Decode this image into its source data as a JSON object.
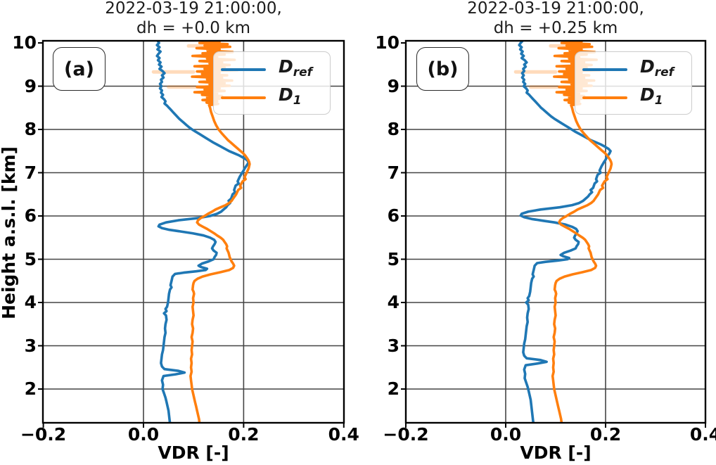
{
  "chart_data": [
    {
      "type": "line",
      "panel_label": "(a)",
      "title": "2022-03-19 21:00:00, dh = +0.0 km",
      "title_line1": "2022-03-19 21:00:00,",
      "title_line2": "dh = +0.0 km",
      "xlabel": "VDR [-]",
      "ylabel": "Height a.s.l. [km]",
      "xlim": [
        -0.2,
        0.4
      ],
      "ylim": [
        1.22,
        10.05
      ],
      "xtick_labels": [
        "−0.2",
        "0.0",
        "0.2",
        "0.4"
      ],
      "xtick_values": [
        -0.2,
        0.0,
        0.2,
        0.4
      ],
      "ytick_values": [
        2,
        3,
        4,
        5,
        6,
        7,
        8,
        9,
        10
      ],
      "grid": true,
      "legend_position": "upper right",
      "series": [
        {
          "name": "D_ref",
          "color": "#1f77b4",
          "profile": "D_ref",
          "dh_km": 0.0
        },
        {
          "name": "D_1",
          "color": "#ff7f0e",
          "profile": "D_1",
          "dh_km": 0.0
        }
      ]
    },
    {
      "type": "line",
      "panel_label": "(b)",
      "title": "2022-03-19 21:00:00, dh = +0.25 km",
      "title_line1": "2022-03-19 21:00:00,",
      "title_line2": "dh = +0.25 km",
      "xlabel": "VDR [-]",
      "ylabel": "Height a.s.l. [km]",
      "xlim": [
        -0.2,
        0.4
      ],
      "ylim": [
        1.22,
        10.05
      ],
      "xtick_labels": [
        "−0.2",
        "0.0",
        "0.2",
        "0.4"
      ],
      "xtick_values": [
        -0.2,
        0.0,
        0.2,
        0.4
      ],
      "ytick_values": [
        2,
        3,
        4,
        5,
        6,
        7,
        8,
        9,
        10
      ],
      "grid": true,
      "legend_position": "upper right",
      "series": [
        {
          "name": "D_ref",
          "color": "#1f77b4",
          "profile": "D_ref",
          "dh_km": 0.25
        },
        {
          "name": "D_1",
          "color": "#ff7f0e",
          "profile": "D_1",
          "dh_km": 0.0
        }
      ]
    }
  ],
  "legend": {
    "items": [
      {
        "label_main": "D",
        "label_sub": "ref",
        "color": "#1f77b4"
      },
      {
        "label_main": "D",
        "label_sub": "1",
        "color": "#ff7f0e"
      }
    ]
  },
  "colors": {
    "blue": "#1f77b4",
    "orange": "#ff7f0e",
    "grid": "#444444",
    "frame": "#000000"
  },
  "profiles": {
    "D_ref": [
      [
        10.06,
        0.028
      ],
      [
        10.0,
        0.031
      ],
      [
        9.95,
        0.027
      ],
      [
        9.9,
        0.032
      ],
      [
        9.85,
        0.028
      ],
      [
        9.8,
        0.034
      ],
      [
        9.75,
        0.03
      ],
      [
        9.7,
        0.027
      ],
      [
        9.65,
        0.032
      ],
      [
        9.6,
        0.029
      ],
      [
        9.55,
        0.034
      ],
      [
        9.5,
        0.031
      ],
      [
        9.45,
        0.036
      ],
      [
        9.4,
        0.032
      ],
      [
        9.35,
        0.038
      ],
      [
        9.3,
        0.042
      ],
      [
        9.25,
        0.037
      ],
      [
        9.2,
        0.04
      ],
      [
        9.15,
        0.035
      ],
      [
        9.1,
        0.037
      ],
      [
        9.05,
        0.033
      ],
      [
        9.0,
        0.036
      ],
      [
        8.95,
        0.033
      ],
      [
        8.9,
        0.037
      ],
      [
        8.85,
        0.035
      ],
      [
        8.8,
        0.039
      ],
      [
        8.75,
        0.036
      ],
      [
        8.7,
        0.041
      ],
      [
        8.65,
        0.044
      ],
      [
        8.6,
        0.042
      ],
      [
        8.55,
        0.047
      ],
      [
        8.5,
        0.051
      ],
      [
        8.45,
        0.055
      ],
      [
        8.4,
        0.059
      ],
      [
        8.35,
        0.063
      ],
      [
        8.3,
        0.067
      ],
      [
        8.25,
        0.071
      ],
      [
        8.2,
        0.076
      ],
      [
        8.15,
        0.081
      ],
      [
        8.1,
        0.086
      ],
      [
        8.05,
        0.091
      ],
      [
        8.0,
        0.097
      ],
      [
        7.95,
        0.104
      ],
      [
        7.9,
        0.111
      ],
      [
        7.85,
        0.118
      ],
      [
        7.8,
        0.125
      ],
      [
        7.75,
        0.132
      ],
      [
        7.7,
        0.139
      ],
      [
        7.65,
        0.147
      ],
      [
        7.6,
        0.155
      ],
      [
        7.55,
        0.163
      ],
      [
        7.5,
        0.171
      ],
      [
        7.45,
        0.181
      ],
      [
        7.4,
        0.191
      ],
      [
        7.35,
        0.199
      ],
      [
        7.3,
        0.206
      ],
      [
        7.25,
        0.21
      ],
      [
        7.2,
        0.208
      ],
      [
        7.15,
        0.205
      ],
      [
        7.1,
        0.202
      ],
      [
        7.05,
        0.2
      ],
      [
        7.0,
        0.197
      ],
      [
        6.9,
        0.192
      ],
      [
        6.8,
        0.188
      ],
      [
        6.75,
        0.19
      ],
      [
        6.7,
        0.184
      ],
      [
        6.6,
        0.181
      ],
      [
        6.55,
        0.183
      ],
      [
        6.5,
        0.178
      ],
      [
        6.4,
        0.175
      ],
      [
        6.35,
        0.17
      ],
      [
        6.3,
        0.173
      ],
      [
        6.25,
        0.168
      ],
      [
        6.2,
        0.165
      ],
      [
        6.15,
        0.16
      ],
      [
        6.1,
        0.155
      ],
      [
        6.05,
        0.147
      ],
      [
        6.0,
        0.133
      ],
      [
        5.95,
        0.108
      ],
      [
        5.9,
        0.07
      ],
      [
        5.85,
        0.045
      ],
      [
        5.8,
        0.032
      ],
      [
        5.76,
        0.03
      ],
      [
        5.72,
        0.037
      ],
      [
        5.68,
        0.052
      ],
      [
        5.64,
        0.075
      ],
      [
        5.6,
        0.098
      ],
      [
        5.55,
        0.12
      ],
      [
        5.5,
        0.133
      ],
      [
        5.45,
        0.141
      ],
      [
        5.4,
        0.144
      ],
      [
        5.35,
        0.142
      ],
      [
        5.3,
        0.139
      ],
      [
        5.25,
        0.137
      ],
      [
        5.2,
        0.14
      ],
      [
        5.15,
        0.146
      ],
      [
        5.1,
        0.145
      ],
      [
        5.05,
        0.142
      ],
      [
        5.0,
        0.14
      ],
      [
        4.95,
        0.13
      ],
      [
        4.9,
        0.117
      ],
      [
        4.85,
        0.11
      ],
      [
        4.82,
        0.115
      ],
      [
        4.78,
        0.127
      ],
      [
        4.75,
        0.124
      ],
      [
        4.72,
        0.105
      ],
      [
        4.69,
        0.08
      ],
      [
        4.66,
        0.063
      ],
      [
        4.6,
        0.058
      ],
      [
        4.5,
        0.056
      ],
      [
        4.4,
        0.054
      ],
      [
        4.35,
        0.056
      ],
      [
        4.3,
        0.053
      ],
      [
        4.2,
        0.051
      ],
      [
        4.1,
        0.05
      ],
      [
        4.0,
        0.049
      ],
      [
        3.9,
        0.047
      ],
      [
        3.85,
        0.044
      ],
      [
        3.8,
        0.046
      ],
      [
        3.75,
        0.041
      ],
      [
        3.7,
        0.045
      ],
      [
        3.6,
        0.046
      ],
      [
        3.5,
        0.044
      ],
      [
        3.4,
        0.043
      ],
      [
        3.3,
        0.044
      ],
      [
        3.2,
        0.042
      ],
      [
        3.1,
        0.041
      ],
      [
        3.0,
        0.04
      ],
      [
        2.9,
        0.039
      ],
      [
        2.8,
        0.037
      ],
      [
        2.7,
        0.036
      ],
      [
        2.6,
        0.035
      ],
      [
        2.52,
        0.037
      ],
      [
        2.46,
        0.042
      ],
      [
        2.42,
        0.07
      ],
      [
        2.38,
        0.082
      ],
      [
        2.34,
        0.064
      ],
      [
        2.3,
        0.04
      ],
      [
        2.2,
        0.037
      ],
      [
        2.1,
        0.039
      ],
      [
        2.0,
        0.038
      ],
      [
        1.9,
        0.041
      ],
      [
        1.8,
        0.044
      ],
      [
        1.7,
        0.046
      ],
      [
        1.6,
        0.048
      ],
      [
        1.5,
        0.05
      ],
      [
        1.4,
        0.051
      ],
      [
        1.3,
        0.052
      ],
      [
        1.2,
        0.053
      ],
      [
        1.1,
        0.054
      ],
      [
        1.0,
        0.055
      ],
      [
        0.95,
        0.056
      ]
    ],
    "D_1": [
      [
        10.06,
        0.128
      ],
      [
        10.03,
        0.152
      ],
      [
        10.0,
        0.112
      ],
      [
        9.97,
        0.168
      ],
      [
        9.94,
        0.122
      ],
      [
        9.91,
        0.173
      ],
      [
        9.88,
        0.106
      ],
      [
        9.85,
        0.152
      ],
      [
        9.82,
        0.128
      ],
      [
        9.79,
        0.178
      ],
      [
        9.76,
        0.118
      ],
      [
        9.73,
        0.162
      ],
      [
        9.7,
        0.098
      ],
      [
        9.67,
        0.147
      ],
      [
        9.64,
        0.127
      ],
      [
        9.61,
        0.182
      ],
      [
        9.58,
        0.112
      ],
      [
        9.55,
        0.157
      ],
      [
        9.52,
        0.132
      ],
      [
        9.49,
        0.172
      ],
      [
        9.46,
        0.102
      ],
      [
        9.43,
        0.162
      ],
      [
        9.4,
        0.122
      ],
      [
        9.37,
        0.188
      ],
      [
        9.34,
        0.107
      ],
      [
        9.31,
        0.152
      ],
      [
        9.28,
        0.117
      ],
      [
        9.25,
        0.167
      ],
      [
        9.22,
        0.097
      ],
      [
        9.19,
        0.157
      ],
      [
        9.16,
        0.127
      ],
      [
        9.13,
        0.177
      ],
      [
        9.1,
        0.112
      ],
      [
        9.07,
        0.162
      ],
      [
        9.04,
        0.132
      ],
      [
        9.01,
        0.172
      ],
      [
        8.98,
        0.107
      ],
      [
        8.95,
        0.152
      ],
      [
        8.92,
        0.122
      ],
      [
        8.89,
        0.162
      ],
      [
        8.86,
        0.102
      ],
      [
        8.83,
        0.147
      ],
      [
        8.8,
        0.117
      ],
      [
        8.77,
        0.157
      ],
      [
        8.74,
        0.127
      ],
      [
        8.71,
        0.152
      ],
      [
        8.68,
        0.118
      ],
      [
        8.65,
        0.147
      ],
      [
        8.62,
        0.126
      ],
      [
        8.59,
        0.149
      ],
      [
        8.56,
        0.131
      ],
      [
        8.5,
        0.133
      ],
      [
        8.4,
        0.135
      ],
      [
        8.3,
        0.138
      ],
      [
        8.2,
        0.141
      ],
      [
        8.1,
        0.145
      ],
      [
        8.0,
        0.15
      ],
      [
        7.9,
        0.157
      ],
      [
        7.85,
        0.161
      ],
      [
        7.8,
        0.165
      ],
      [
        7.75,
        0.169
      ],
      [
        7.7,
        0.174
      ],
      [
        7.65,
        0.179
      ],
      [
        7.6,
        0.184
      ],
      [
        7.55,
        0.189
      ],
      [
        7.5,
        0.194
      ],
      [
        7.45,
        0.199
      ],
      [
        7.4,
        0.203
      ],
      [
        7.35,
        0.206
      ],
      [
        7.3,
        0.209
      ],
      [
        7.25,
        0.211
      ],
      [
        7.2,
        0.212
      ],
      [
        7.15,
        0.211
      ],
      [
        7.1,
        0.21
      ],
      [
        7.05,
        0.208
      ],
      [
        7.0,
        0.206
      ],
      [
        6.9,
        0.202
      ],
      [
        6.85,
        0.204
      ],
      [
        6.8,
        0.198
      ],
      [
        6.7,
        0.193
      ],
      [
        6.65,
        0.195
      ],
      [
        6.6,
        0.189
      ],
      [
        6.5,
        0.185
      ],
      [
        6.4,
        0.179
      ],
      [
        6.35,
        0.176
      ],
      [
        6.3,
        0.171
      ],
      [
        6.25,
        0.164
      ],
      [
        6.2,
        0.154
      ],
      [
        6.15,
        0.144
      ],
      [
        6.1,
        0.137
      ],
      [
        6.05,
        0.129
      ],
      [
        6.0,
        0.122
      ],
      [
        5.95,
        0.114
      ],
      [
        5.9,
        0.109
      ],
      [
        5.85,
        0.107
      ],
      [
        5.8,
        0.111
      ],
      [
        5.75,
        0.119
      ],
      [
        5.7,
        0.127
      ],
      [
        5.65,
        0.134
      ],
      [
        5.6,
        0.141
      ],
      [
        5.55,
        0.147
      ],
      [
        5.5,
        0.154
      ],
      [
        5.45,
        0.159
      ],
      [
        5.4,
        0.162
      ],
      [
        5.35,
        0.165
      ],
      [
        5.3,
        0.167
      ],
      [
        5.25,
        0.166
      ],
      [
        5.2,
        0.168
      ],
      [
        5.15,
        0.17
      ],
      [
        5.1,
        0.171
      ],
      [
        5.05,
        0.172
      ],
      [
        5.0,
        0.174
      ],
      [
        4.95,
        0.176
      ],
      [
        4.9,
        0.179
      ],
      [
        4.85,
        0.181
      ],
      [
        4.8,
        0.179
      ],
      [
        4.75,
        0.171
      ],
      [
        4.7,
        0.154
      ],
      [
        4.65,
        0.134
      ],
      [
        4.6,
        0.118
      ],
      [
        4.55,
        0.108
      ],
      [
        4.5,
        0.102
      ],
      [
        4.45,
        0.1
      ],
      [
        4.4,
        0.099
      ],
      [
        4.3,
        0.098
      ],
      [
        4.25,
        0.1
      ],
      [
        4.2,
        0.101
      ],
      [
        4.1,
        0.099
      ],
      [
        4.0,
        0.1
      ],
      [
        3.9,
        0.098
      ],
      [
        3.8,
        0.099
      ],
      [
        3.7,
        0.1
      ],
      [
        3.6,
        0.098
      ],
      [
        3.5,
        0.097
      ],
      [
        3.4,
        0.099
      ],
      [
        3.3,
        0.098
      ],
      [
        3.2,
        0.096
      ],
      [
        3.1,
        0.098
      ],
      [
        3.0,
        0.097
      ],
      [
        2.9,
        0.096
      ],
      [
        2.8,
        0.097
      ],
      [
        2.7,
        0.095
      ],
      [
        2.6,
        0.096
      ],
      [
        2.5,
        0.095
      ],
      [
        2.4,
        0.096
      ],
      [
        2.3,
        0.094
      ],
      [
        2.2,
        0.095
      ],
      [
        2.1,
        0.096
      ],
      [
        2.0,
        0.097
      ],
      [
        1.9,
        0.099
      ],
      [
        1.8,
        0.101
      ],
      [
        1.7,
        0.103
      ],
      [
        1.6,
        0.105
      ],
      [
        1.5,
        0.107
      ],
      [
        1.4,
        0.109
      ],
      [
        1.3,
        0.111
      ],
      [
        1.2,
        0.112
      ],
      [
        1.1,
        0.114
      ],
      [
        1.0,
        0.116
      ]
    ],
    "D_1_faint_bars": [
      [
        9.93,
        0.09,
        0.16
      ],
      [
        9.33,
        0.02,
        0.1
      ],
      [
        8.98,
        0.05,
        0.13
      ]
    ]
  }
}
